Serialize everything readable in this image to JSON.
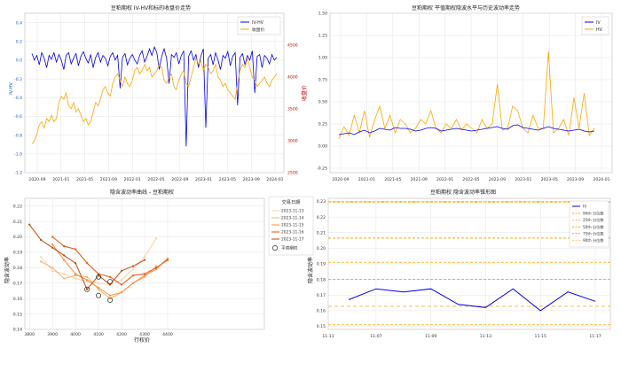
{
  "chart_data": [
    {
      "id": "p1",
      "type": "line",
      "title": "豆粕期权 IV-HV和标的收盘价走势",
      "xlabel": "",
      "ylabel": "IV-HV",
      "ylabel_right": "收盘价",
      "ylim": [
        -1.2,
        0.5
      ],
      "ylim_right": [
        2500,
        5000
      ],
      "y_ticks": [
        -1.2,
        -1.0,
        -0.8,
        -0.6,
        -0.4,
        -0.2,
        0.0,
        0.2,
        0.4
      ],
      "y_ticks_right": [
        2500,
        3000,
        3500,
        4000,
        4500
      ],
      "x_ticks": [
        "2020-09",
        "2021-01",
        "2021-05",
        "2021-09",
        "2022-01",
        "2022-05",
        "2022-09",
        "2023-01",
        "2023-05",
        "2023-09",
        "2024-01"
      ],
      "grid": true,
      "legend_position": "top-right",
      "series": [
        {
          "name": "IV-HV",
          "color": "#0000ee",
          "axis": "left",
          "x": [
            0,
            0.01,
            0.02,
            0.03,
            0.04,
            0.05,
            0.06,
            0.07,
            0.08,
            0.09,
            0.1,
            0.11,
            0.12,
            0.13,
            0.14,
            0.15,
            0.16,
            0.17,
            0.18,
            0.19,
            0.2,
            0.21,
            0.22,
            0.23,
            0.24,
            0.25,
            0.26,
            0.27,
            0.28,
            0.29,
            0.3,
            0.31,
            0.32,
            0.33,
            0.34,
            0.35,
            0.36,
            0.37,
            0.38,
            0.39,
            0.4,
            0.41,
            0.42,
            0.43,
            0.44,
            0.45,
            0.46,
            0.47,
            0.48,
            0.49,
            0.5,
            0.51,
            0.52,
            0.53,
            0.54,
            0.55,
            0.56,
            0.57,
            0.58,
            0.59,
            0.6,
            0.61,
            0.62,
            0.63,
            0.64,
            0.65,
            0.66,
            0.67,
            0.68,
            0.69,
            0.7,
            0.71,
            0.72,
            0.73,
            0.74,
            0.75,
            0.76,
            0.77,
            0.78,
            0.79,
            0.8,
            0.81,
            0.82,
            0.83,
            0.84,
            0.85,
            0.86,
            0.87,
            0.88,
            0.89,
            0.9,
            0.91,
            0.92,
            0.93,
            0.94,
            0.95,
            0.96,
            0.97,
            0.98,
            0.99,
            1
          ],
          "y": [
            0.07,
            0.0,
            0.05,
            -0.05,
            0.08,
            0.02,
            -0.08,
            0.05,
            0.01,
            0.08,
            -0.02,
            0.06,
            0.0,
            -0.1,
            0.05,
            0.08,
            -0.04,
            0.02,
            0.07,
            -0.06,
            0.04,
            0.09,
            0.02,
            -0.03,
            0.06,
            -0.08,
            0.03,
            0.08,
            -0.02,
            0.05,
            0.02,
            -0.06,
            0.04,
            0.08,
            0.0,
            0.05,
            -0.3,
            0.03,
            0.07,
            -0.05,
            0.02,
            0.06,
            0.0,
            -0.04,
            0.05,
            0.1,
            -0.02,
            0.04,
            0.12,
            0.05,
            0.14,
            0.08,
            -0.1,
            0.04,
            0.12,
            0.02,
            -0.25,
            0.06,
            0.03,
            0.08,
            -0.04,
            0.05,
            0.1,
            -0.92,
            0.04,
            0.1,
            0.0,
            0.06,
            -0.08,
            0.04,
            0.12,
            -0.72,
            0.02,
            0.06,
            -0.05,
            0.08,
            0.0,
            -0.1,
            0.05,
            0.02,
            0.09,
            -0.06,
            0.04,
            0.08,
            -0.48,
            0.03,
            0.07,
            -0.05,
            0.05,
            0.0,
            0.1,
            -0.35,
            0.04,
            0.06,
            -0.08,
            0.05,
            0.02,
            -0.04,
            0.06,
            0.0,
            0.03
          ]
        },
        {
          "name": "收盘价",
          "color": "#ffa500",
          "axis": "right",
          "x": [
            0,
            0.01,
            0.02,
            0.03,
            0.04,
            0.05,
            0.06,
            0.07,
            0.08,
            0.09,
            0.1,
            0.11,
            0.12,
            0.13,
            0.14,
            0.15,
            0.16,
            0.17,
            0.18,
            0.19,
            0.2,
            0.21,
            0.22,
            0.23,
            0.24,
            0.25,
            0.26,
            0.27,
            0.28,
            0.29,
            0.3,
            0.31,
            0.32,
            0.33,
            0.34,
            0.35,
            0.36,
            0.37,
            0.38,
            0.39,
            0.4,
            0.41,
            0.42,
            0.43,
            0.44,
            0.45,
            0.46,
            0.47,
            0.48,
            0.49,
            0.5,
            0.51,
            0.52,
            0.53,
            0.54,
            0.55,
            0.56,
            0.57,
            0.58,
            0.59,
            0.6,
            0.61,
            0.62,
            0.63,
            0.64,
            0.65,
            0.66,
            0.67,
            0.68,
            0.69,
            0.7,
            0.71,
            0.72,
            0.73,
            0.74,
            0.75,
            0.76,
            0.77,
            0.78,
            0.79,
            0.8,
            0.81,
            0.82,
            0.83,
            0.84,
            0.85,
            0.86,
            0.87,
            0.88,
            0.89,
            0.9,
            0.91,
            0.92,
            0.93,
            0.94,
            0.95,
            0.96,
            0.97,
            0.98,
            0.99,
            1
          ],
          "y": [
            2950,
            3000,
            3100,
            3250,
            3300,
            3200,
            3350,
            3300,
            3400,
            3300,
            3350,
            3600,
            3700,
            3650,
            3750,
            3550,
            3500,
            3600,
            3450,
            3500,
            3400,
            3300,
            3350,
            3250,
            3300,
            3450,
            3600,
            3550,
            3650,
            3800,
            3850,
            3750,
            3700,
            3900,
            4000,
            4050,
            3950,
            3850,
            4000,
            3900,
            3850,
            3950,
            4100,
            4150,
            4050,
            4100,
            4200,
            4100,
            4150,
            4000,
            4050,
            4100,
            4200,
            4150,
            3950,
            3900,
            4000,
            4050,
            3850,
            3800,
            3950,
            4050,
            4100,
            3900,
            3850,
            4000,
            4150,
            4300,
            4200,
            4250,
            4100,
            4200,
            4150,
            4050,
            4100,
            4200,
            4000,
            3950,
            3850,
            3900,
            3800,
            3750,
            3700,
            3650,
            3900,
            4100,
            4200,
            4150,
            4300,
            4150,
            4000,
            3950,
            3850,
            3900,
            3950,
            4000,
            3900,
            3850,
            3950,
            4000,
            4050
          ]
        }
      ]
    },
    {
      "id": "p2",
      "type": "line",
      "title": "豆粕期权 平值期权隐波水平与历史波动率走势",
      "xlabel": "",
      "ylabel": "",
      "ylim": [
        -0.3,
        1.5
      ],
      "y_ticks": [
        -0.25,
        0.0,
        0.25,
        0.5,
        0.75,
        1.0,
        1.25,
        1.5
      ],
      "x_ticks": [
        "2020-09",
        "2021-01",
        "2021-05",
        "2021-09",
        "2022-01",
        "2022-05",
        "2022-09",
        "2023-01",
        "2023-05",
        "2023-09",
        "2024-01"
      ],
      "grid": true,
      "legend_position": "top-right",
      "series": [
        {
          "name": "IV",
          "color": "#0000ee",
          "x": [
            0,
            0.02,
            0.04,
            0.06,
            0.08,
            0.1,
            0.12,
            0.14,
            0.16,
            0.18,
            0.2,
            0.22,
            0.24,
            0.26,
            0.28,
            0.3,
            0.32,
            0.34,
            0.36,
            0.38,
            0.4,
            0.42,
            0.44,
            0.46,
            0.48,
            0.5,
            0.52,
            0.54,
            0.56,
            0.58,
            0.6,
            0.62,
            0.64,
            0.66,
            0.68,
            0.7,
            0.72,
            0.74,
            0.76,
            0.78,
            0.8,
            0.82,
            0.84,
            0.86,
            0.88,
            0.9,
            0.92,
            0.94,
            0.96,
            0.98,
            1
          ],
          "y": [
            0.13,
            0.14,
            0.15,
            0.13,
            0.16,
            0.18,
            0.15,
            0.17,
            0.2,
            0.19,
            0.18,
            0.21,
            0.2,
            0.2,
            0.19,
            0.17,
            0.18,
            0.2,
            0.21,
            0.2,
            0.17,
            0.18,
            0.19,
            0.2,
            0.19,
            0.18,
            0.17,
            0.18,
            0.19,
            0.2,
            0.21,
            0.22,
            0.2,
            0.19,
            0.23,
            0.24,
            0.21,
            0.2,
            0.19,
            0.18,
            0.2,
            0.22,
            0.2,
            0.19,
            0.18,
            0.17,
            0.18,
            0.19,
            0.17,
            0.16,
            0.17
          ]
        },
        {
          "name": "HV",
          "color": "#ffa500",
          "x": [
            0,
            0.02,
            0.04,
            0.06,
            0.08,
            0.1,
            0.12,
            0.14,
            0.16,
            0.18,
            0.2,
            0.22,
            0.24,
            0.26,
            0.28,
            0.3,
            0.32,
            0.34,
            0.36,
            0.38,
            0.4,
            0.42,
            0.44,
            0.46,
            0.48,
            0.5,
            0.52,
            0.54,
            0.56,
            0.58,
            0.6,
            0.62,
            0.64,
            0.66,
            0.68,
            0.7,
            0.72,
            0.74,
            0.76,
            0.78,
            0.8,
            0.82,
            0.84,
            0.86,
            0.88,
            0.9,
            0.92,
            0.94,
            0.96,
            0.98,
            1
          ],
          "y": [
            0.08,
            0.22,
            0.12,
            0.35,
            0.15,
            0.4,
            0.1,
            0.3,
            0.45,
            0.2,
            0.35,
            0.15,
            0.3,
            0.25,
            0.15,
            0.2,
            0.3,
            0.25,
            0.4,
            0.2,
            0.15,
            0.25,
            0.2,
            0.3,
            0.18,
            0.25,
            0.2,
            0.15,
            0.3,
            0.2,
            0.25,
            0.7,
            0.18,
            0.2,
            0.45,
            0.4,
            0.2,
            0.15,
            0.35,
            0.2,
            0.2,
            1.07,
            0.15,
            0.2,
            0.3,
            0.12,
            0.55,
            0.2,
            0.6,
            0.12,
            0.2
          ]
        }
      ]
    },
    {
      "id": "p3",
      "type": "line",
      "title": "隐含波动率曲线 - 豆粕期权",
      "xlabel": "行权价",
      "ylabel": "隐含波动率",
      "xlim": [
        3780,
        4820
      ],
      "ylim": [
        0.14,
        0.225
      ],
      "x_ticks": [
        3800,
        3900,
        4000,
        4100,
        4200,
        4300,
        4400
      ],
      "y_ticks": [
        0.14,
        0.15,
        0.16,
        0.17,
        0.18,
        0.19,
        0.2,
        0.21,
        0.22
      ],
      "grid": true,
      "legend_title": "交易日期",
      "legend_position": "upper-right, outside",
      "atm_label": "平值期权",
      "series": [
        {
          "name": "2023-11-13",
          "color": "#fdd0a2",
          "x": [
            3850,
            3900,
            3950,
            4000,
            4050,
            4100,
            4150,
            4200,
            4250,
            4300,
            4350
          ],
          "y": [
            0.187,
            0.178,
            0.176,
            0.173,
            0.171,
            0.17,
            0.169,
            0.172,
            0.179,
            0.187,
            0.199
          ]
        },
        {
          "name": "2023-11-14",
          "color": "#fdae6b",
          "x": [
            3850,
            3900,
            3950,
            4000,
            4050,
            4100,
            4150,
            4200,
            4250,
            4300,
            4350
          ],
          "y": [
            0.184,
            0.18,
            0.173,
            0.175,
            0.174,
            0.166,
            0.16,
            0.164,
            0.17,
            0.174,
            0.181
          ]
        },
        {
          "name": "2023-11-15",
          "color": "#fd8d3c",
          "x": [
            3900,
            3950,
            4000,
            4050,
            4100,
            4150,
            4200,
            4250,
            4300,
            4350,
            4400
          ],
          "y": [
            0.195,
            0.185,
            0.176,
            0.172,
            0.167,
            0.162,
            0.164,
            0.17,
            0.175,
            0.179,
            0.186
          ]
        },
        {
          "name": "2023-11-16",
          "color": "#e6550d",
          "x": [
            3900,
            3950,
            4000,
            4050,
            4100,
            4150,
            4200,
            4250,
            4300,
            4350,
            4400
          ],
          "y": [
            0.2,
            0.194,
            0.192,
            0.183,
            0.176,
            0.174,
            0.169,
            0.175,
            0.176,
            0.18,
            0.185
          ]
        },
        {
          "name": "2023-11-17",
          "color": "#c24a0e",
          "x": [
            3800,
            3850,
            3900,
            3950,
            4000,
            4050,
            4100,
            4150,
            4200,
            4250,
            4300
          ],
          "y": [
            0.208,
            0.198,
            0.193,
            0.188,
            0.183,
            0.166,
            0.175,
            0.169,
            0.178,
            0.181,
            0.185
          ]
        }
      ],
      "atm_points": [
        {
          "x": 4050,
          "y": 0.166
        },
        {
          "x": 4100,
          "y": 0.174
        },
        {
          "x": 4100,
          "y": 0.162
        },
        {
          "x": 4150,
          "y": 0.171
        },
        {
          "x": 4150,
          "y": 0.159
        }
      ]
    },
    {
      "id": "p4",
      "type": "line",
      "title": "豆粕期权 隐含波动率锥形图",
      "xlabel": "",
      "ylabel": "隐含波动率",
      "ylim": [
        0.148,
        0.232
      ],
      "x_ticks": [
        "11-07",
        "11-09",
        "11-11",
        "11-13",
        "11-15",
        "11-17"
      ],
      "y_ticks": [
        0.15,
        0.16,
        0.17,
        0.18,
        0.19,
        0.2,
        0.21,
        0.22,
        0.23
      ],
      "grid": true,
      "legend_position": "top-right",
      "series": [
        {
          "name": "IV",
          "color": "#0000ee",
          "x": [
            "11-06",
            "11-07",
            "11-08",
            "11-09",
            "11-10",
            "11-13",
            "11-14",
            "11-15",
            "11-16",
            "11-17"
          ],
          "y": [
            0.167,
            0.174,
            0.172,
            0.174,
            0.164,
            0.162,
            0.174,
            0.16,
            0.172,
            0.166
          ]
        }
      ],
      "quantiles": [
        {
          "name": "90th 分位数",
          "value": 0.2297,
          "color": "#ffa500",
          "width": 1.5,
          "dash": "3,2"
        },
        {
          "name": "25th 分位数",
          "value": 0.1628,
          "color": "#ffb84d",
          "width": 1,
          "dash": "4,3"
        },
        {
          "name": "50th 分位数",
          "value": 0.18,
          "color": "#ffa500",
          "width": 1,
          "dash": "3,2"
        },
        {
          "name": "75th 分位数",
          "value": 0.2065,
          "color": "#ffa500",
          "width": 1,
          "dash": "3,2"
        },
        {
          "name": "90th 分位数",
          "value": 0.2297,
          "color": "#ffc266",
          "width": 1,
          "dash": "4,3"
        }
      ],
      "extra_lines": [
        0.191,
        0.151
      ]
    }
  ]
}
